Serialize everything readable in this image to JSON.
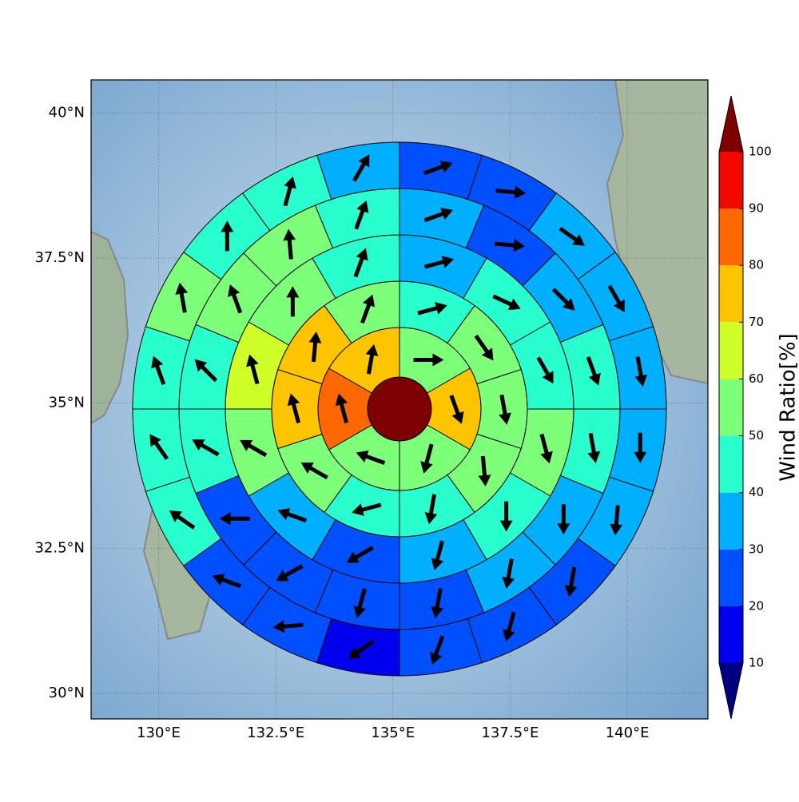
{
  "chart_data": {
    "type": "polar-grid",
    "xlim": [
      128.56,
      141.72
    ],
    "ylim": [
      29.56,
      40.57
    ],
    "xticks": [
      {
        "value": 130,
        "label": "130°E"
      },
      {
        "value": 132.5,
        "label": "132.5°E"
      },
      {
        "value": 135,
        "label": "135°E"
      },
      {
        "value": 137.5,
        "label": "137.5°E"
      },
      {
        "value": 140,
        "label": "140°E"
      }
    ],
    "yticks": [
      {
        "value": 30,
        "label": "30°N"
      },
      {
        "value": 32.5,
        "label": "32.5°N"
      },
      {
        "value": 35,
        "label": "35°N"
      },
      {
        "value": 37.5,
        "label": "37.5°N"
      },
      {
        "value": 40,
        "label": "40°N"
      }
    ],
    "grid": true,
    "center_value": 100,
    "rings": [
      {
        "values": [
          55,
          75,
          55,
          55,
          85,
          75
        ],
        "directions": [
          90,
          160,
          195,
          290,
          345,
          10
        ]
      },
      {
        "values": [
          45,
          55,
          55,
          55,
          45,
          45,
          55,
          75,
          75,
          55
        ],
        "directions": [
          75,
          145,
          170,
          175,
          190,
          255,
          300,
          345,
          5,
          20
        ]
      },
      {
        "values": [
          35,
          45,
          45,
          55,
          45,
          35,
          25,
          35,
          55,
          65,
          55,
          45
        ],
        "directions": [
          75,
          115,
          150,
          165,
          180,
          195,
          240,
          290,
          300,
          345,
          0,
          20
        ]
      },
      {
        "values": [
          35,
          25,
          35,
          45,
          45,
          35,
          35,
          25,
          25,
          25,
          25,
          45,
          45,
          55,
          55,
          45
        ],
        "directions": [
          70,
          95,
          135,
          160,
          170,
          180,
          190,
          190,
          195,
          240,
          270,
          300,
          315,
          340,
          355,
          20
        ]
      },
      {
        "values": [
          25,
          25,
          35,
          35,
          35,
          35,
          35,
          25,
          25,
          25,
          15,
          25,
          25,
          45,
          45,
          45,
          55,
          45,
          45,
          35
        ],
        "directions": [
          70,
          95,
          125,
          150,
          170,
          180,
          185,
          190,
          195,
          200,
          235,
          265,
          290,
          305,
          325,
          340,
          350,
          0,
          15,
          30
        ]
      }
    ],
    "colorbar": {
      "label": "Wind Ratio[%]",
      "ticks": [
        10,
        20,
        30,
        40,
        50,
        60,
        70,
        80,
        90,
        100
      ],
      "colors": [
        "#0000ee",
        "#0050ff",
        "#00b0ff",
        "#29ffce",
        "#7dff7a",
        "#ceff29",
        "#ffc400",
        "#ff6800",
        "#f10800"
      ],
      "under": "#00007f",
      "over": "#7f0000"
    }
  }
}
